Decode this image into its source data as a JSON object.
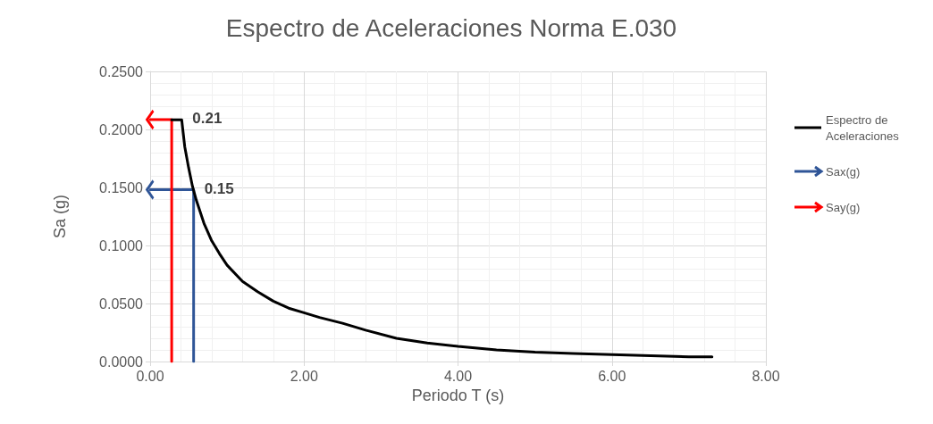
{
  "chart_data": {
    "type": "line",
    "title": "Espectro de Aceleraciones Norma E.030",
    "xlabel": "Periodo T (s)",
    "ylabel": "Sa (g)",
    "xlim": [
      0,
      8
    ],
    "xticks": [
      {
        "value": 0,
        "label": "0.00"
      },
      {
        "value": 2,
        "label": "2.00"
      },
      {
        "value": 4,
        "label": "4.00"
      },
      {
        "value": 6,
        "label": "6.00"
      },
      {
        "value": 8,
        "label": "8.00"
      }
    ],
    "ylim": [
      0,
      0.25
    ],
    "yticks": [
      {
        "value": 0,
        "label": "0.0000"
      },
      {
        "value": 0.05,
        "label": "0.0500"
      },
      {
        "value": 0.1,
        "label": "0.1000"
      },
      {
        "value": 0.15,
        "label": "0.1500"
      },
      {
        "value": 0.2,
        "label": "0.2000"
      },
      {
        "value": 0.25,
        "label": "0.2500"
      }
    ],
    "grid": true,
    "legend": "right",
    "marker": "none",
    "series": [
      {
        "name": "Espectro de Aceleraciones",
        "color": "#000000",
        "x": [
          0.28,
          0.41,
          0.45,
          0.5,
          0.55,
          0.6,
          0.7,
          0.8,
          0.9,
          1.0,
          1.2,
          1.4,
          1.6,
          1.8,
          2.0,
          2.2,
          2.5,
          2.8,
          3.2,
          3.6,
          4.0,
          4.5,
          5.0,
          5.5,
          6.0,
          6.5,
          7.0,
          7.3
        ],
        "values": [
          0.2083,
          0.2083,
          0.185,
          0.167,
          0.151,
          0.139,
          0.119,
          0.104,
          0.093,
          0.083,
          0.069,
          0.06,
          0.052,
          0.046,
          0.042,
          0.038,
          0.033,
          0.027,
          0.02,
          0.016,
          0.013,
          0.01,
          0.008,
          0.007,
          0.006,
          0.005,
          0.004,
          0.004
        ]
      },
      {
        "name": "Sax(g)",
        "color": "#2f5597",
        "x": [
          0.565,
          0.565,
          0
        ],
        "values": [
          0,
          0.148,
          0.148
        ]
      },
      {
        "name": "Say(g)",
        "color": "#ff0000",
        "x": [
          0.28,
          0.28,
          0
        ],
        "values": [
          0,
          0.2085,
          0.2085
        ]
      }
    ],
    "annotations": [
      {
        "text": "0.21",
        "x": 0.41,
        "y": 0.2083
      },
      {
        "text": "0.15",
        "x": 0.565,
        "y": 0.148
      }
    ]
  }
}
